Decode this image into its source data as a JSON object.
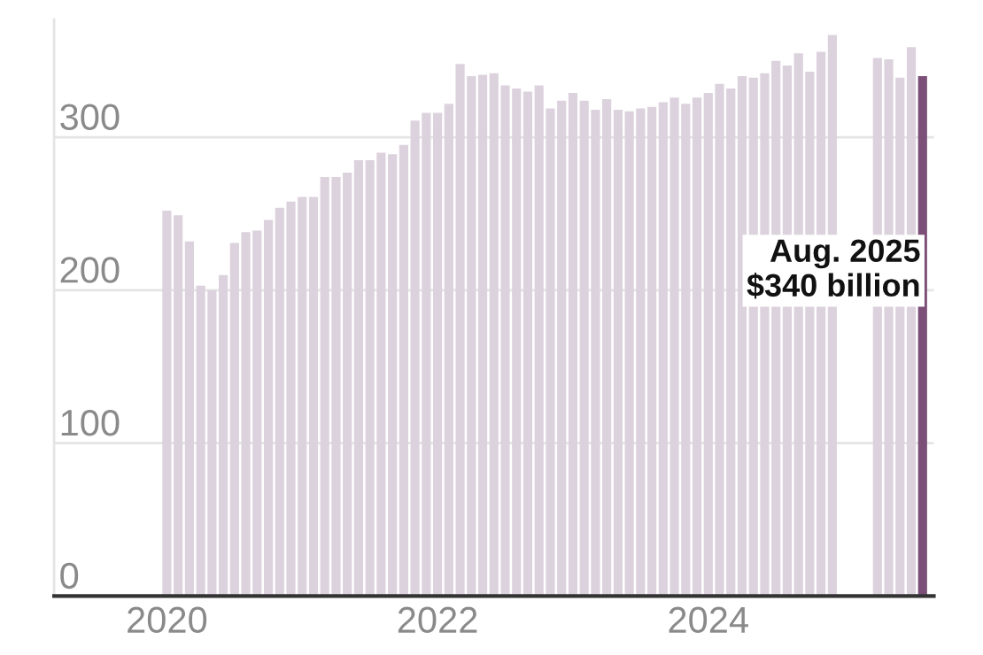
{
  "chart_data": {
    "type": "bar",
    "x": [
      "2020-01",
      "2020-02",
      "2020-03",
      "2020-04",
      "2020-05",
      "2020-06",
      "2020-07",
      "2020-08",
      "2020-09",
      "2020-10",
      "2020-11",
      "2020-12",
      "2021-01",
      "2021-02",
      "2021-03",
      "2021-04",
      "2021-05",
      "2021-06",
      "2021-07",
      "2021-08",
      "2021-09",
      "2021-10",
      "2021-11",
      "2021-12",
      "2022-01",
      "2022-02",
      "2022-03",
      "2022-04",
      "2022-05",
      "2022-06",
      "2022-07",
      "2022-08",
      "2022-09",
      "2022-10",
      "2022-11",
      "2022-12",
      "2023-01",
      "2023-02",
      "2023-03",
      "2023-04",
      "2023-05",
      "2023-06",
      "2023-07",
      "2023-08",
      "2023-09",
      "2023-10",
      "2023-11",
      "2023-12",
      "2024-01",
      "2024-02",
      "2024-03",
      "2024-04",
      "2024-05",
      "2024-06",
      "2024-07",
      "2024-08",
      "2024-09",
      "2024-10",
      "2024-11",
      "2024-12",
      "2025-01",
      "2025-02",
      "2025-03",
      "2025-04",
      "2025-05",
      "2025-06",
      "2025-07",
      "2025-08"
    ],
    "values": [
      252,
      249,
      232,
      203,
      200,
      210,
      231,
      238,
      239,
      246,
      254,
      258,
      261,
      261,
      274,
      274,
      277,
      285,
      285,
      290,
      289,
      295,
      311,
      316,
      316,
      322,
      348,
      340,
      341,
      342,
      334,
      332,
      330,
      334,
      319,
      324,
      329,
      324,
      318,
      325,
      318,
      317,
      319,
      320,
      323,
      326,
      322,
      326,
      329,
      335,
      332,
      340,
      339,
      342,
      350,
      347,
      355,
      343,
      356,
      367,
      null,
      null,
      null,
      352,
      351,
      339,
      359,
      340
    ],
    "colors": [
      "#dcd2dd",
      "#dcd2dd",
      "#dcd2dd",
      "#dcd2dd",
      "#dcd2dd",
      "#dcd2dd",
      "#dcd2dd",
      "#dcd2dd",
      "#dcd2dd",
      "#dcd2dd",
      "#dcd2dd",
      "#dcd2dd",
      "#dcd2dd",
      "#dcd2dd",
      "#dcd2dd",
      "#dcd2dd",
      "#dcd2dd",
      "#dcd2dd",
      "#dcd2dd",
      "#dcd2dd",
      "#dcd2dd",
      "#dcd2dd",
      "#dcd2dd",
      "#dcd2dd",
      "#dcd2dd",
      "#dcd2dd",
      "#dcd2dd",
      "#dcd2dd",
      "#dcd2dd",
      "#dcd2dd",
      "#dcd2dd",
      "#dcd2dd",
      "#dcd2dd",
      "#dcd2dd",
      "#dcd2dd",
      "#dcd2dd",
      "#dcd2dd",
      "#dcd2dd",
      "#dcd2dd",
      "#dcd2dd",
      "#dcd2dd",
      "#dcd2dd",
      "#dcd2dd",
      "#dcd2dd",
      "#dcd2dd",
      "#dcd2dd",
      "#dcd2dd",
      "#dcd2dd",
      "#dcd2dd",
      "#dcd2dd",
      "#dcd2dd",
      "#dcd2dd",
      "#dcd2dd",
      "#dcd2dd",
      "#dcd2dd",
      "#dcd2dd",
      "#dcd2dd",
      "#dcd2dd",
      "#dcd2dd",
      "#dcd2dd",
      "#dcd2dd",
      "#dcd2dd",
      "#dcd2dd",
      "#dcd2dd",
      "#dcd2dd",
      "#dcd2dd",
      "#dcd2dd",
      "#7b4f78"
    ],
    "annotations": [
      "Aug. 2025\n$340 billion"
    ],
    "xlim": [
      "2019-03",
      "2025-09"
    ],
    "xticks": [
      {
        "value": "2020-01",
        "label": "2020"
      },
      {
        "value": "2022-01",
        "label": "2022"
      },
      {
        "value": "2024-01",
        "label": "2024"
      }
    ],
    "ylim": [
      0,
      377
    ],
    "yticks": [
      0,
      100,
      200,
      300
    ],
    "grid": "y"
  }
}
